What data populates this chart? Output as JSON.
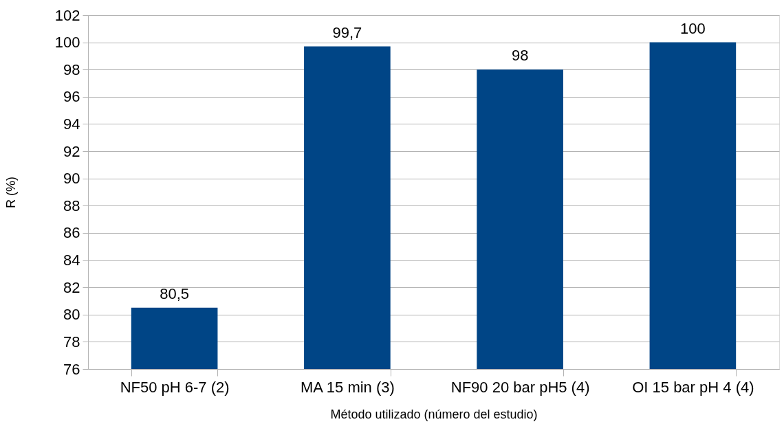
{
  "chart_data": {
    "type": "bar",
    "xlabel": "Método utilizado (número del estudio)",
    "ylabel": "R (%)",
    "categories": [
      "NF50 pH 6-7 (2)",
      "MA 15 min (3)",
      "NF90 20 bar pH5 (4)",
      "OI 15 bar pH 4 (4)"
    ],
    "values": [
      80.5,
      99.7,
      98,
      100
    ],
    "value_labels": [
      "80,5",
      "99,7",
      "98",
      "100"
    ],
    "color": "#004586",
    "ylim": [
      76,
      102
    ],
    "yticks": [
      76,
      78,
      80,
      82,
      84,
      86,
      88,
      90,
      92,
      94,
      96,
      98,
      100,
      102
    ],
    "grid": "y"
  }
}
